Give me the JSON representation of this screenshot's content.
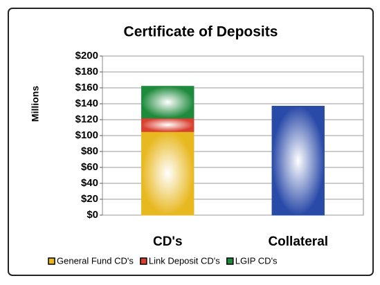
{
  "chart_data": {
    "type": "bar",
    "stacked": true,
    "title": "Certificate of Deposits",
    "y_label": "Millions",
    "categories": [
      "CD's",
      "Collateral"
    ],
    "series": [
      {
        "name": "General Fund CD's",
        "color": "#e8b820",
        "values": [
          105,
          null
        ]
      },
      {
        "name": "Link Deposit CD's",
        "color": "#d84030",
        "values": [
          17,
          null
        ]
      },
      {
        "name": "LGIP CD's",
        "color": "#1e8a3c",
        "values": [
          40,
          null
        ]
      },
      {
        "color": "#2a4aa8",
        "values": [
          null,
          137
        ]
      }
    ],
    "ylim": [
      0,
      200
    ],
    "yticks": [
      {
        "value": 0,
        "label": "$0"
      },
      {
        "value": 20,
        "label": "$20"
      },
      {
        "value": 40,
        "label": "$40"
      },
      {
        "value": 60,
        "label": "$60"
      },
      {
        "value": 80,
        "label": "$80"
      },
      {
        "value": 100,
        "label": "$100"
      },
      {
        "value": 120,
        "label": "$120"
      },
      {
        "value": 140,
        "label": "$140"
      },
      {
        "value": 160,
        "label": "$160"
      },
      {
        "value": 180,
        "label": "$180"
      },
      {
        "value": 200,
        "label": "$200"
      }
    ],
    "grid": true,
    "legend": "bottom"
  }
}
